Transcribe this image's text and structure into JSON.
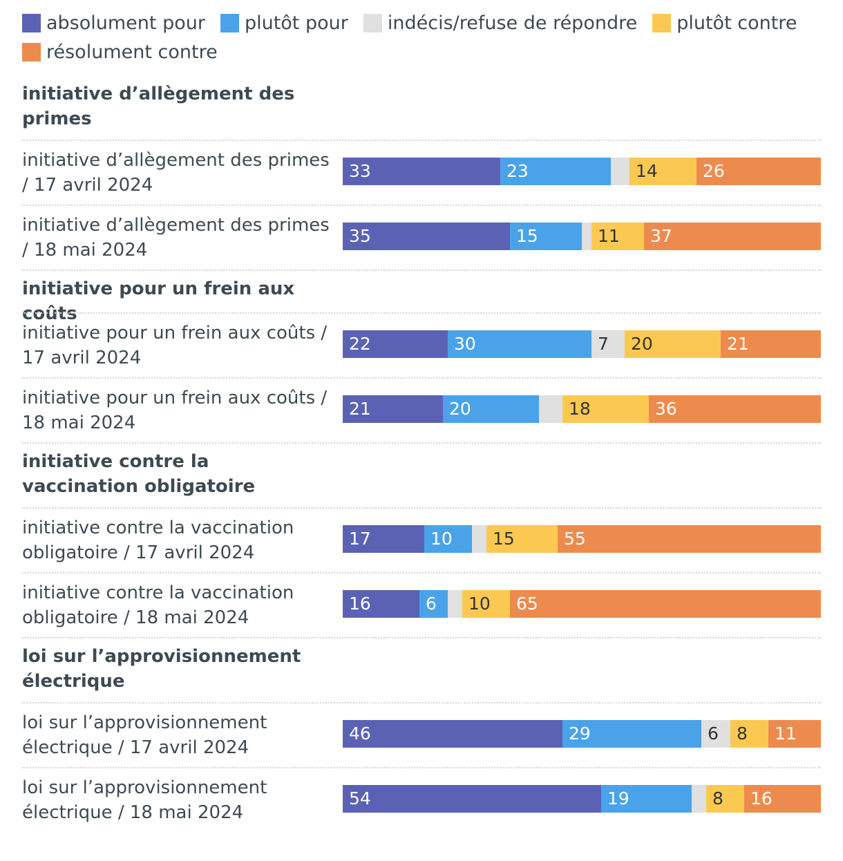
{
  "chart_data": {
    "type": "bar",
    "orientation": "horizontal",
    "stacked": true,
    "legend_position": "top",
    "series": [
      {
        "key": "absolument",
        "name": "absolument pour",
        "color": "#5b62b4",
        "text_color": "#ffffff"
      },
      {
        "key": "plutot_pour",
        "name": "plutôt pour",
        "color": "#4aa3e8",
        "text_color": "#ffffff"
      },
      {
        "key": "indecis",
        "name": "indécis/refuse de répondre",
        "color": "#e0e0e0",
        "text_color": "#333333"
      },
      {
        "key": "plutot_contre",
        "name": "plutôt contre",
        "color": "#fbc951",
        "text_color": "#333333"
      },
      {
        "key": "resolument",
        "name": "résolument contre",
        "color": "#ed8b4e",
        "text_color": "#ffffff"
      }
    ],
    "groups": [
      {
        "title": "initiative d’allègement des primes",
        "rows": [
          {
            "label": "initiative d’allègement des primes / 17 avril 2024",
            "values": [
              33,
              23,
              4,
              14,
              26
            ],
            "labels": [
              "33",
              "23",
              "",
              "14",
              "26"
            ]
          },
          {
            "label": "initiative d’allègement des primes / 18 mai 2024",
            "values": [
              35,
              15,
              2,
              11,
              37
            ],
            "labels": [
              "35",
              "15",
              "",
              "11",
              "37"
            ]
          }
        ]
      },
      {
        "title": "initiative pour un frein aux coûts",
        "rows": [
          {
            "label": "initiative pour un frein aux coûts / 17 avril 2024",
            "values": [
              22,
              30,
              7,
              20,
              21
            ],
            "labels": [
              "22",
              "30",
              "7",
              "20",
              "21"
            ]
          },
          {
            "label": "initiative pour un frein aux coûts / 18 mai 2024",
            "values": [
              21,
              20,
              5,
              18,
              36
            ],
            "labels": [
              "21",
              "20",
              "",
              "18",
              "36"
            ]
          }
        ]
      },
      {
        "title": "initiative contre la vaccination obligatoire",
        "rows": [
          {
            "label": "initiative contre la vaccination obligatoire / 17 avril 2024",
            "values": [
              17,
              10,
              3,
              15,
              55
            ],
            "labels": [
              "17",
              "10",
              "",
              "15",
              "55"
            ]
          },
          {
            "label": "initiative contre la vaccination obligatoire / 18 mai 2024",
            "values": [
              16,
              6,
              3,
              10,
              65
            ],
            "labels": [
              "16",
              "6",
              "",
              "10",
              "65"
            ]
          }
        ]
      },
      {
        "title": "loi sur l’approvisionnement électrique",
        "rows": [
          {
            "label": "loi sur l’approvisionnement électrique / 17 avril 2024",
            "values": [
              46,
              29,
              6,
              8,
              11
            ],
            "labels": [
              "46",
              "29",
              "6",
              "8",
              "11"
            ]
          },
          {
            "label": "loi sur l’approvisionnement électrique / 18 mai 2024",
            "values": [
              54,
              19,
              3,
              8,
              16
            ],
            "labels": [
              "54",
              "19",
              "",
              "8",
              "16"
            ]
          }
        ]
      }
    ]
  }
}
